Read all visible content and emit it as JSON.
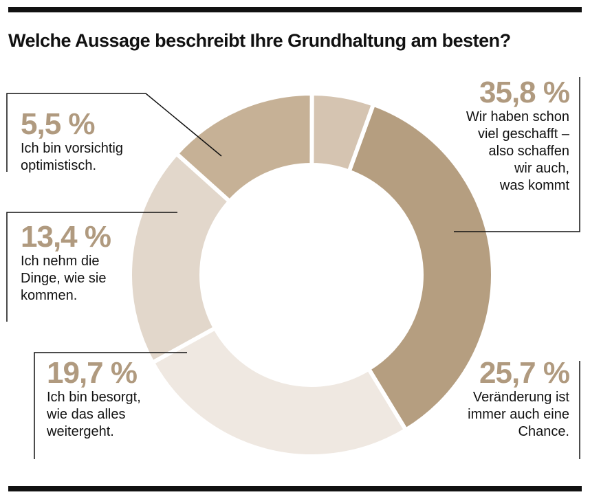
{
  "chart_data": {
    "type": "pie",
    "title": "Welche Aussage beschreibt Ihre Grundhaltung am besten?",
    "slices": [
      {
        "value": 35.8,
        "value_label": "35,8 %",
        "text": "Wir haben schon viel geschafft – also schaffen wir auch, was kommt",
        "text_lines": [
          "Wir haben schon",
          "viel geschafft –",
          "also schaffen",
          "wir auch,",
          "was kommt"
        ],
        "color": "#b59e80"
      },
      {
        "value": 25.7,
        "value_label": "25,7 %",
        "text": "Veränderung ist immer auch eine Chance.",
        "text_lines": [
          "Veränderung ist",
          "immer auch eine",
          "Chance."
        ],
        "color": "#efe8e1"
      },
      {
        "value": 19.7,
        "value_label": "19,7 %",
        "text": "Ich bin besorgt, wie das alles weitergeht.",
        "text_lines": [
          "Ich bin besorgt,",
          "wie das alles",
          "weitergeht."
        ],
        "color": "#e2d7cb"
      },
      {
        "value": 13.4,
        "value_label": "13,4 %",
        "text": "Ich nehm die Dinge, wie sie kommen.",
        "text_lines": [
          "Ich nehm die",
          "Dinge, wie sie",
          "kommen."
        ],
        "color": "#c6b196"
      },
      {
        "value": 5.5,
        "value_label": "5,5 %",
        "text": "Ich bin vorsichtig optimistisch.",
        "text_lines": [
          "Ich bin vorsichtig",
          "optimistisch."
        ],
        "color": "#d5c4b1"
      }
    ]
  }
}
